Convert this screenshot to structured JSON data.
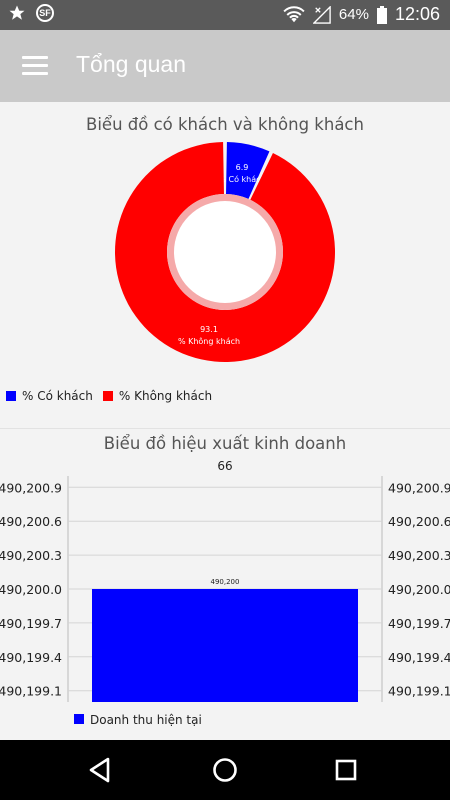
{
  "status_bar": {
    "battery": "64%",
    "time": "12:06",
    "icons": [
      "star-icon",
      "sf-app-icon",
      "wifi-icon",
      "no-signal-icon",
      "battery-icon"
    ]
  },
  "app_bar": {
    "title": "Tổng quan",
    "menu_icon": "hamburger-menu-icon"
  },
  "colors": {
    "series_blue": "#0000ff",
    "series_red": "#ff0000",
    "app_bar": "#c9c9c9",
    "status_bar": "#5a5a5a"
  },
  "chart_data": [
    {
      "type": "pie",
      "title": "Biểu đồ có khách và không khách",
      "donut": true,
      "slices": [
        {
          "label": "% Có khách",
          "value": 6.9,
          "color": "#0000ff"
        },
        {
          "label": "% Không khách",
          "value": 93.1,
          "color": "#ff0000"
        }
      ],
      "value_labels": [
        "6.9",
        "93.1"
      ],
      "legend": [
        "% Có khách",
        "% Không khách"
      ],
      "legend_position": "bottom-left"
    },
    {
      "type": "bar",
      "title": "Biểu đồ hiệu xuất kinh doanh",
      "top_label": "66",
      "categories": [
        ""
      ],
      "series": [
        {
          "name": "Doanh thu hiện tại",
          "values": [
            490200
          ],
          "color": "#0000ff"
        }
      ],
      "bar_value_label": "490,200",
      "ylim": [
        490199.0,
        490201.0
      ],
      "y_ticks": [
        490200.9,
        490200.6,
        490200.3,
        490200.0,
        490199.7,
        490199.4,
        490199.1
      ],
      "y_tick_labels": [
        "490,200.9",
        "490,200.6",
        "490,200.3",
        "490,200.0",
        "490,199.7",
        "490,199.4",
        "490,199.1"
      ],
      "grid": true,
      "dual_y_axis": true,
      "legend": [
        "Doanh thu hiện tại"
      ],
      "legend_position": "bottom-left"
    }
  ],
  "nav_bar": {
    "buttons": [
      "back-icon",
      "home-icon",
      "recents-icon"
    ]
  }
}
